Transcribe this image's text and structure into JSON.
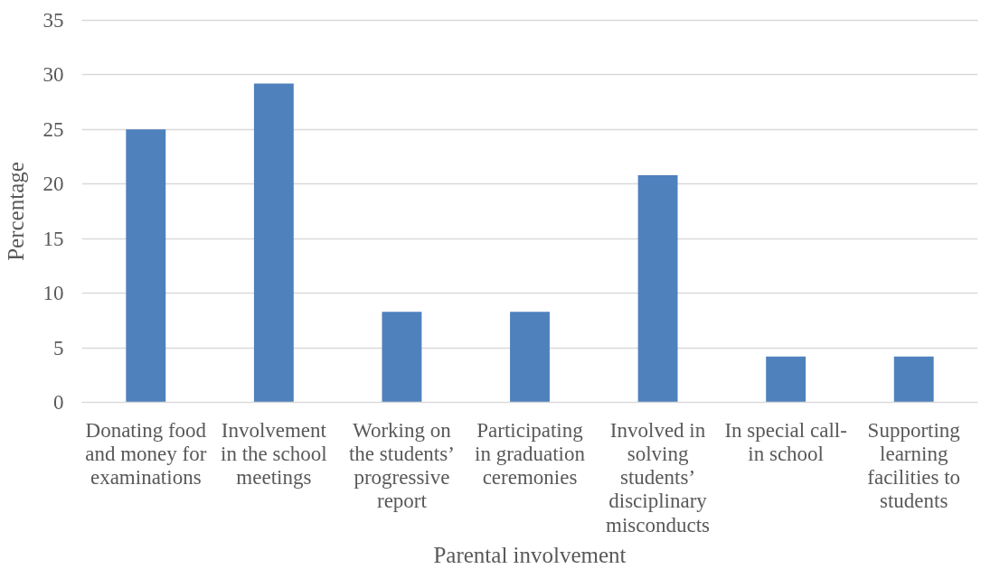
{
  "chart_data": {
    "type": "bar",
    "xlabel": "Parental involvement",
    "ylabel": "Percentage",
    "categories": [
      "Donating food and money for examinations",
      "Involvement in the school meetings",
      "Working on the students’ progressive report",
      "Participating in graduation ceremonies",
      "Involved in solving students’ disciplinary misconducts",
      "In special call-in school",
      "Supporting learning facilities to students"
    ],
    "values": [
      25,
      29.2,
      8.3,
      8.3,
      20.8,
      4.2,
      4.2
    ],
    "color": "#4f81bd",
    "ylim": [
      0,
      35
    ],
    "yticks": [
      0,
      5,
      10,
      15,
      20,
      25,
      30,
      35
    ],
    "grid": "y"
  }
}
